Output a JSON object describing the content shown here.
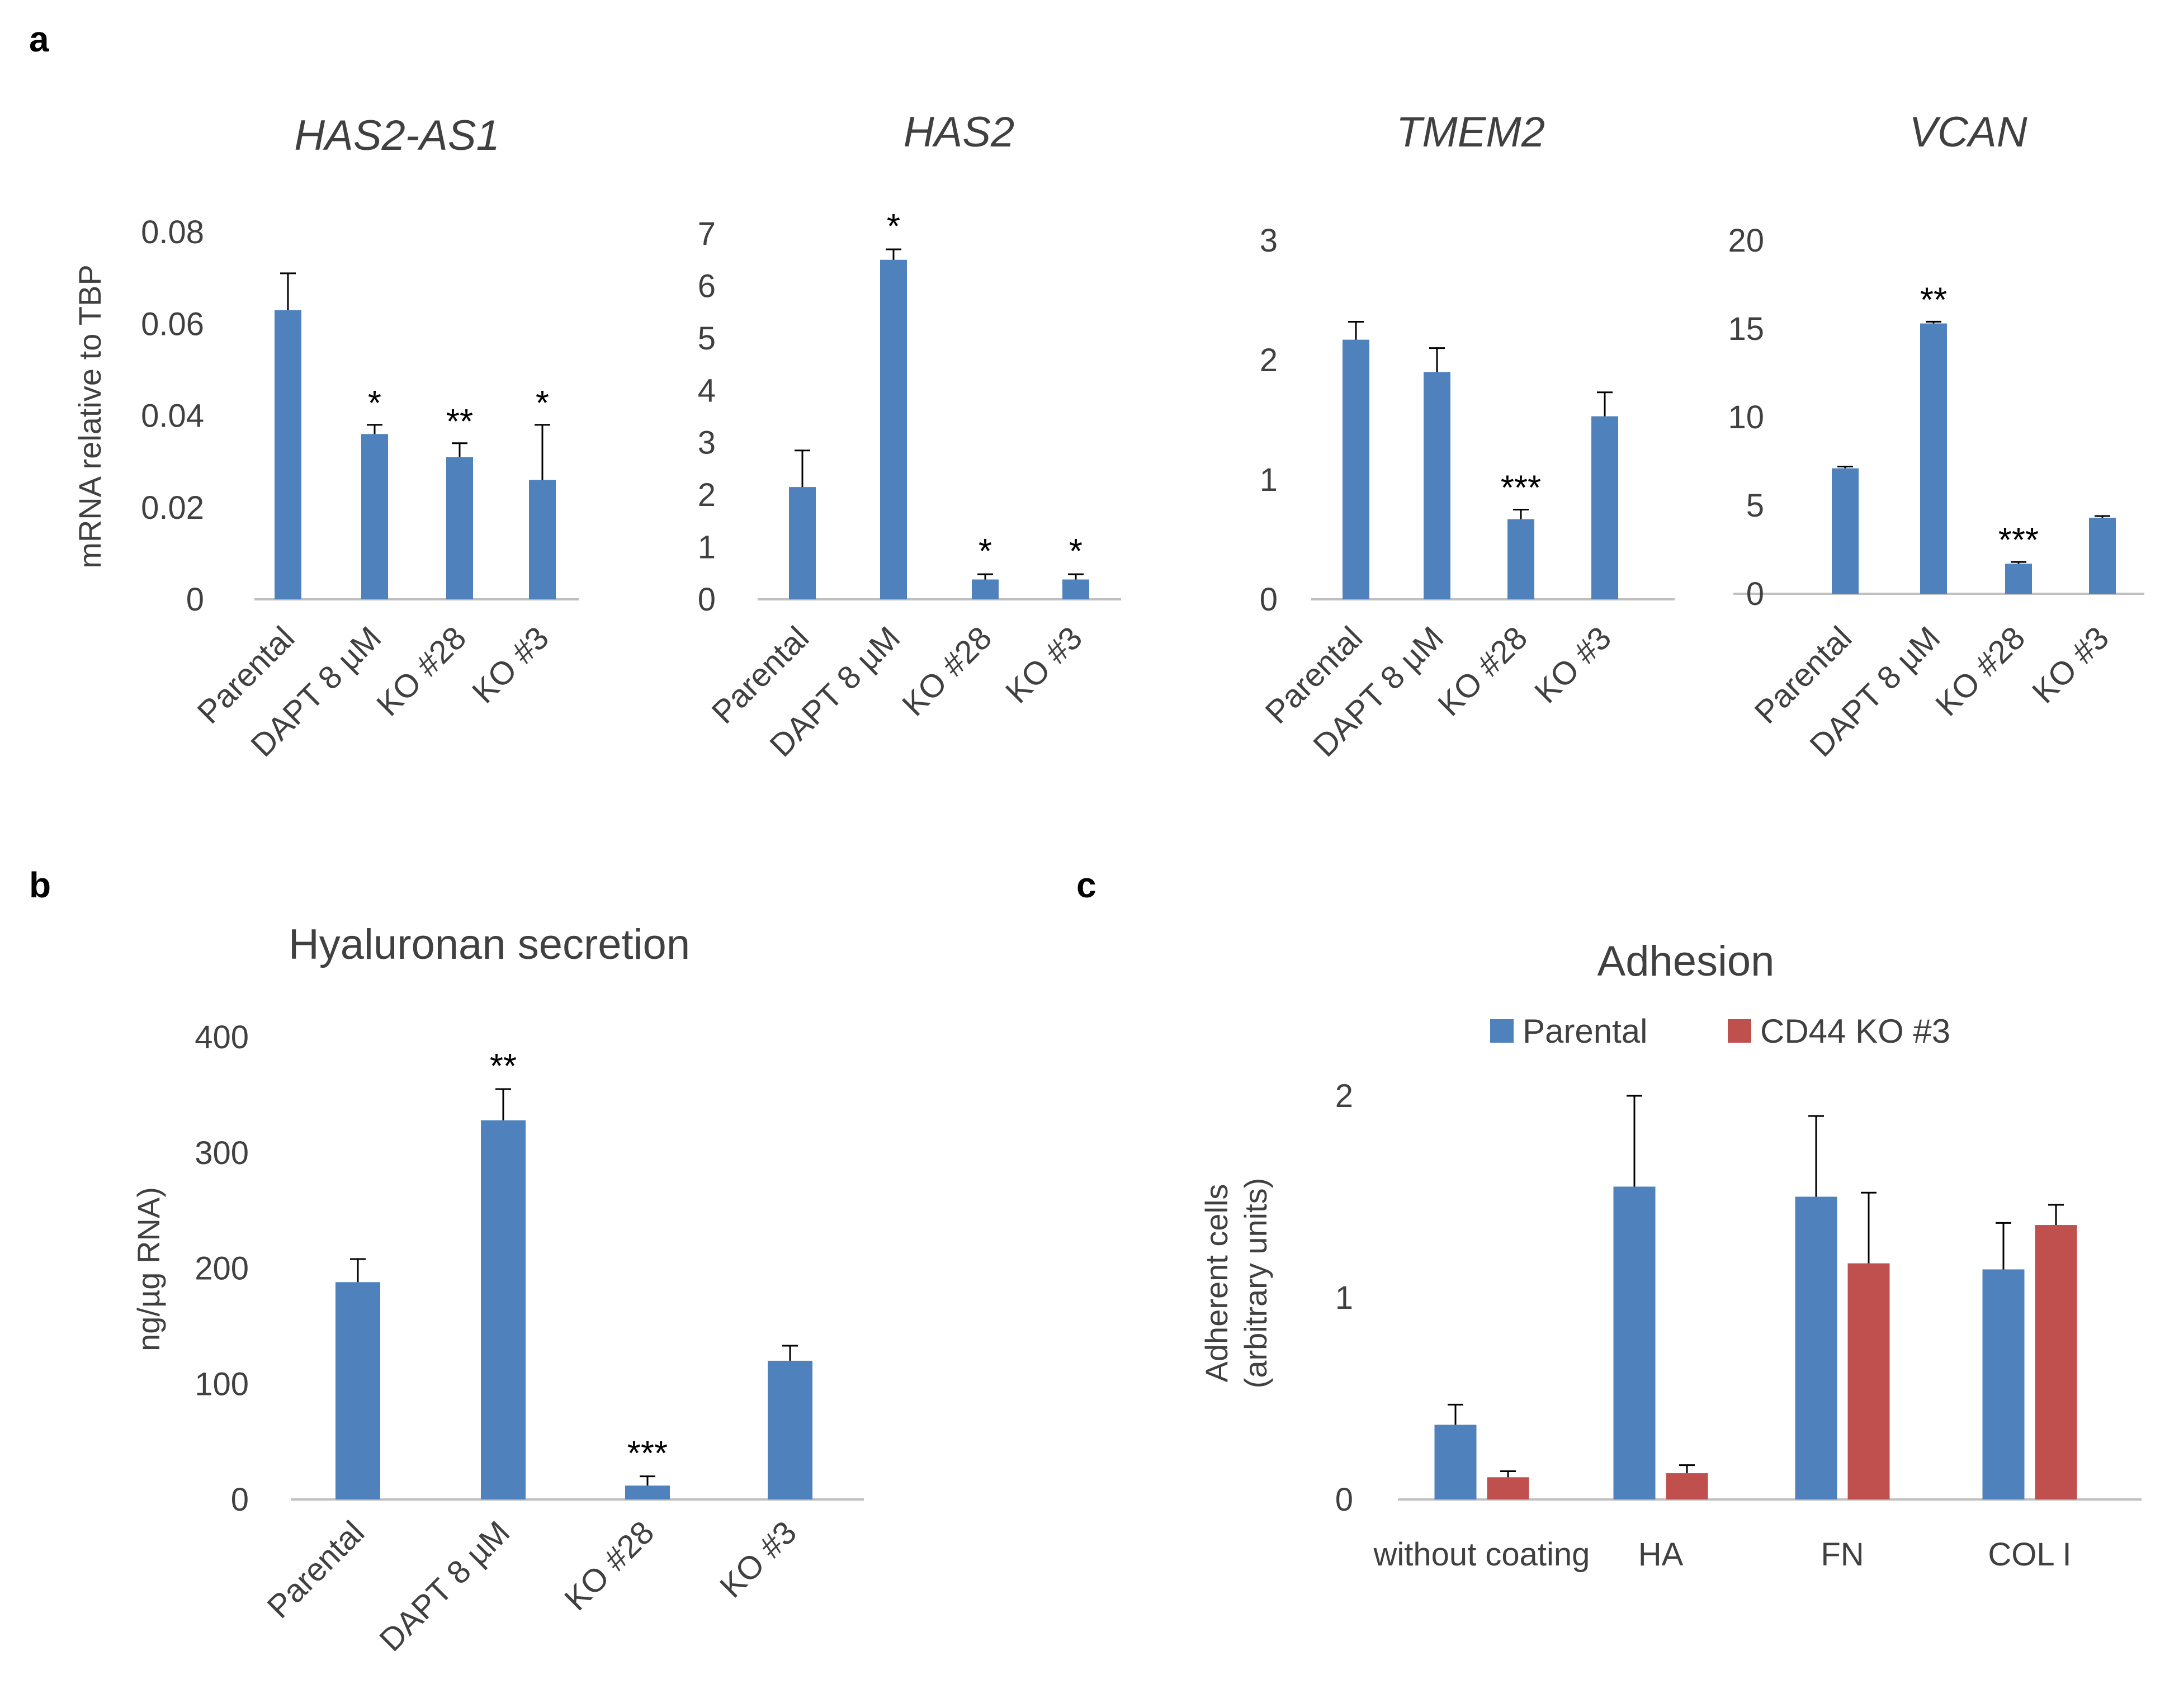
{
  "panels": [
    {
      "letter": "a"
    },
    {
      "letter": "b"
    },
    {
      "letter": "c"
    }
  ],
  "colors": {
    "blue": "#4F81BD",
    "red": "#C0504D",
    "axis": "#BFBFBF",
    "text": "#404040"
  },
  "chart_data": [
    {
      "id": "has2as1",
      "type": "bar",
      "panel": "a",
      "title": "HAS2-AS1",
      "title_italic": true,
      "ylabel": "mRNA relative to TBP",
      "ylim": [
        0,
        0.08
      ],
      "yticks": [
        "0",
        "0.02",
        "0.04",
        "0.06",
        "0.08"
      ],
      "categories": [
        "Parental",
        "DAPT 8 µM",
        "KO #28",
        "KO #3"
      ],
      "values": [
        0.063,
        0.036,
        0.031,
        0.026
      ],
      "errors": [
        0.008,
        0.002,
        0.003,
        0.012
      ],
      "significance": [
        "",
        "*",
        "**",
        "*"
      ]
    },
    {
      "id": "has2",
      "type": "bar",
      "panel": "a",
      "title": "HAS2",
      "title_italic": true,
      "ylim": [
        0,
        7
      ],
      "yticks": [
        "0",
        "1",
        "2",
        "3",
        "4",
        "5",
        "6",
        "7"
      ],
      "categories": [
        "Parental",
        "DAPT 8 µM",
        "KO #28",
        "KO #3"
      ],
      "values": [
        2.15,
        6.5,
        0.38,
        0.38
      ],
      "errors": [
        0.7,
        0.2,
        0.1,
        0.1
      ],
      "significance": [
        "",
        "*",
        "*",
        "*"
      ]
    },
    {
      "id": "tmem2",
      "type": "bar",
      "panel": "a",
      "title": "TMEM2",
      "title_italic": true,
      "ylim": [
        0,
        3
      ],
      "yticks": [
        "0",
        "1",
        "2",
        "3"
      ],
      "categories": [
        "Parental",
        "DAPT 8 µM",
        "KO #28",
        "KO #3"
      ],
      "values": [
        2.17,
        1.9,
        0.67,
        1.53
      ],
      "errors": [
        0.15,
        0.2,
        0.08,
        0.2
      ],
      "significance": [
        "",
        "",
        "***",
        ""
      ]
    },
    {
      "id": "vcan",
      "type": "bar",
      "panel": "a",
      "title": "VCAN",
      "title_italic": true,
      "ylim": [
        0,
        20
      ],
      "yticks": [
        "0",
        "5",
        "10",
        "15",
        "20"
      ],
      "categories": [
        "Parental",
        "DAPT 8 µM",
        "KO #28",
        "KO #3"
      ],
      "values": [
        7.1,
        15.3,
        1.7,
        4.3
      ],
      "errors": [
        0.1,
        0.1,
        0.1,
        0.1
      ],
      "significance": [
        "",
        "**",
        "***",
        ""
      ]
    },
    {
      "id": "hyaluronan",
      "type": "bar",
      "panel": "b",
      "title": "Hyaluronan secretion",
      "title_italic": false,
      "ylabel": "ng/µg RNA)",
      "ylim": [
        0,
        400
      ],
      "yticks": [
        "0",
        "100",
        "200",
        "300",
        "400"
      ],
      "categories": [
        "Parental",
        "DAPT 8 µM",
        "KO #28",
        "KO #3"
      ],
      "values": [
        188,
        328,
        12,
        120
      ],
      "errors": [
        20,
        27,
        8,
        13
      ],
      "significance": [
        "",
        "**",
        "***",
        ""
      ]
    },
    {
      "id": "adhesion",
      "type": "bar",
      "panel": "c",
      "title": "Adhesion",
      "title_italic": false,
      "ylabel_lines": [
        "Adherent cells",
        "(arbitrary units)"
      ],
      "ylim": [
        0,
        2
      ],
      "yticks": [
        "0",
        "1",
        "2"
      ],
      "categories": [
        "without coating",
        "HA",
        "FN",
        "COL I"
      ],
      "series": [
        {
          "name": "Parental",
          "values": [
            0.37,
            1.55,
            1.5,
            1.14
          ],
          "errors": [
            0.1,
            0.45,
            0.4,
            0.23
          ]
        },
        {
          "name": "CD44 KO #3",
          "values": [
            0.11,
            0.13,
            1.17,
            1.36
          ],
          "errors": [
            0.03,
            0.04,
            0.35,
            0.1
          ]
        }
      ],
      "legend": "top"
    }
  ]
}
